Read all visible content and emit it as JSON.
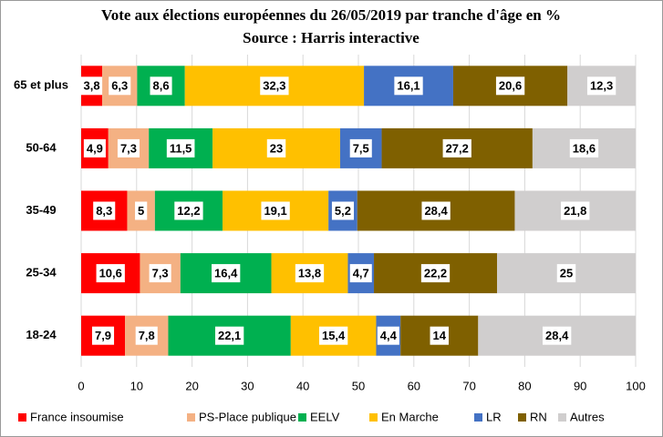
{
  "chart_data": {
    "type": "bar",
    "orientation": "horizontal",
    "stacked": true,
    "title": "Vote aux élections européennes du 26/05/2019 par tranche d'âge en %",
    "subtitle": "Source : Harris interactive",
    "categories": [
      "65 et plus",
      "50-64",
      "35-49",
      "25-34",
      "18-24"
    ],
    "series": [
      {
        "name": "France insoumise",
        "color": "#ff0000",
        "values": [
          3.8,
          4.9,
          8.3,
          10.6,
          7.9
        ],
        "value_labels": [
          "3,8",
          "4,9",
          "8,3",
          "10,6",
          "7,9"
        ]
      },
      {
        "name": "PS-Place publique",
        "color": "#f4b183",
        "values": [
          6.3,
          7.3,
          5,
          7.3,
          7.8
        ],
        "value_labels": [
          "6,3",
          "7,3",
          "5",
          "7,3",
          "7,8"
        ]
      },
      {
        "name": "EELV",
        "color": "#00b050",
        "values": [
          8.6,
          11.5,
          12.2,
          16.4,
          22.1
        ],
        "value_labels": [
          "8,6",
          "11,5",
          "12,2",
          "16,4",
          "22,1"
        ]
      },
      {
        "name": "En Marche",
        "color": "#ffc000",
        "values": [
          32.3,
          23,
          19.1,
          13.8,
          15.4
        ],
        "value_labels": [
          "32,3",
          "23",
          "19,1",
          "13,8",
          "15,4"
        ]
      },
      {
        "name": "LR",
        "color": "#4472c4",
        "values": [
          16.1,
          7.5,
          5.2,
          4.7,
          4.4
        ],
        "value_labels": [
          "16,1",
          "7,5",
          "5,2",
          "4,7",
          "4,4"
        ]
      },
      {
        "name": "RN",
        "color": "#7f6000",
        "values": [
          20.6,
          27.2,
          28.4,
          22.2,
          14
        ],
        "value_labels": [
          "20,6",
          "27,2",
          "28,4",
          "22,2",
          "14"
        ]
      },
      {
        "name": "Autres",
        "color": "#d0cece",
        "values": [
          12.3,
          18.6,
          21.8,
          25,
          28.4
        ],
        "value_labels": [
          "12,3",
          "18,6",
          "21,8",
          "25",
          "28,4"
        ]
      }
    ],
    "xlim": [
      0,
      100
    ],
    "xticks": [
      0,
      10,
      20,
      30,
      40,
      50,
      60,
      70,
      80,
      90,
      100
    ],
    "grid": true,
    "legend": "bottom"
  }
}
